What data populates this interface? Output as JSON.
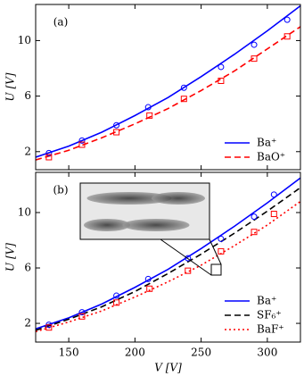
{
  "chart_data": [
    {
      "type": "line",
      "panel_label": "(a)",
      "ylabel": "U [V]",
      "xlim": [
        125,
        325
      ],
      "xticks": [
        150,
        200,
        250,
        300
      ],
      "ylim": [
        0.7,
        12.6
      ],
      "yticks": [
        2,
        6,
        10
      ],
      "legend": "lower right",
      "series": [
        {
          "name": "Ba⁺",
          "color": "#0000ff",
          "dash": "solid",
          "x": [
            125,
            150,
            175,
            200,
            225,
            250,
            275,
            300,
            325
          ],
          "values": [
            1.6,
            2.4,
            3.4,
            4.6,
            5.9,
            7.4,
            9.0,
            10.7,
            12.5
          ]
        },
        {
          "name": "BaO⁺",
          "color": "#ff0000",
          "dash": "dashed",
          "x": [
            125,
            150,
            175,
            200,
            225,
            250,
            275,
            300,
            325
          ],
          "values": [
            1.4,
            2.1,
            3.0,
            4.0,
            5.1,
            6.4,
            7.8,
            9.4,
            11.0
          ]
        }
      ],
      "markers": [
        {
          "shape": "circle",
          "color": "#0000ff",
          "x": [
            135,
            160,
            186,
            210,
            237,
            265,
            290,
            315
          ],
          "values": [
            1.9,
            2.8,
            3.9,
            5.2,
            6.6,
            8.1,
            9.7,
            11.5
          ]
        },
        {
          "shape": "square",
          "color": "#ff0000",
          "x": [
            135,
            160,
            186,
            211,
            237,
            265,
            290,
            315
          ],
          "values": [
            1.6,
            2.5,
            3.4,
            4.6,
            5.8,
            7.1,
            8.7,
            10.3
          ]
        }
      ]
    },
    {
      "type": "line",
      "panel_label": "(b)",
      "ylabel": "U [V]",
      "xlabel": "V [V]",
      "xlim": [
        125,
        325
      ],
      "xticks": [
        150,
        200,
        250,
        300
      ],
      "ylim": [
        0.65,
        12.9
      ],
      "yticks": [
        2,
        6,
        10
      ],
      "legend": "lower right",
      "series": [
        {
          "name": "Ba⁺",
          "color": "#0000ff",
          "dash": "solid",
          "x": [
            125,
            150,
            175,
            200,
            225,
            250,
            275,
            300,
            325
          ],
          "values": [
            1.6,
            2.4,
            3.4,
            4.6,
            5.9,
            7.4,
            9.0,
            10.7,
            12.5
          ]
        },
        {
          "name": "SF₆⁺",
          "color": "#000000",
          "dash": "dashed",
          "x": [
            125,
            150,
            175,
            200,
            225,
            250,
            275,
            300,
            325
          ],
          "values": [
            1.5,
            2.3,
            3.2,
            4.3,
            5.6,
            7.0,
            8.5,
            10.1,
            11.8
          ]
        },
        {
          "name": "BaF⁺",
          "color": "#ff0000",
          "dash": "dotted",
          "x": [
            125,
            150,
            175,
            200,
            225,
            250,
            275,
            300,
            325
          ],
          "values": [
            1.4,
            2.1,
            2.9,
            3.9,
            5.0,
            6.2,
            7.6,
            9.1,
            10.8
          ]
        }
      ],
      "markers": [
        {
          "shape": "circle",
          "color": "#0000ff",
          "x": [
            135,
            160,
            186,
            210,
            240,
            265,
            290,
            305
          ],
          "values": [
            1.9,
            2.8,
            4.0,
            5.2,
            6.7,
            8.1,
            9.7,
            11.3
          ]
        },
        {
          "shape": "square",
          "color": "#ff0000",
          "x": [
            135,
            160,
            186,
            211,
            240,
            265,
            290,
            305
          ],
          "values": [
            1.7,
            2.5,
            3.5,
            4.5,
            5.8,
            7.2,
            8.6,
            9.9
          ]
        }
      ]
    }
  ]
}
